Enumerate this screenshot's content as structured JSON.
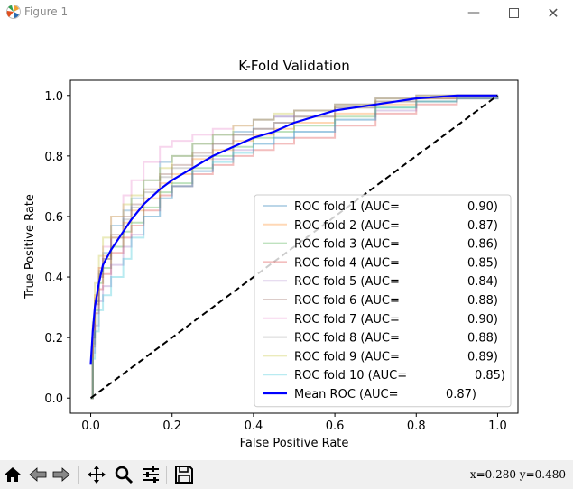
{
  "window": {
    "title": "Figure 1",
    "minimize_icon": "minimize-icon",
    "maximize_icon": "maximize-icon",
    "close_icon": "close-icon"
  },
  "toolbar": {
    "buttons": [
      "home-icon",
      "back-arrow-icon",
      "forward-arrow-icon",
      "pan-icon",
      "zoom-icon",
      "configure-subplots-icon",
      "save-icon"
    ],
    "coords": "x=0.280 y=0.480"
  },
  "chart_data": {
    "type": "line",
    "title": "K-Fold Validation",
    "xlabel": "False Positive Rate",
    "ylabel": "True Positive Rate",
    "xlim": [
      -0.05,
      1.05
    ],
    "ylim": [
      -0.05,
      1.05
    ],
    "xticks": [
      "0.0",
      "0.2",
      "0.4",
      "0.6",
      "0.8",
      "1.0"
    ],
    "yticks": [
      "0.0",
      "0.2",
      "0.4",
      "0.6",
      "0.8",
      "1.0"
    ],
    "grid": false,
    "legend_position": "lower right",
    "series": [
      {
        "name": "ROC fold  1 (AUC=",
        "auc": "0.90",
        "color": "#1f77b4",
        "x": [
          0,
          0.005,
          0.01,
          0.02,
          0.03,
          0.05,
          0.08,
          0.1,
          0.13,
          0.17,
          0.2,
          0.25,
          0.3,
          0.35,
          0.4,
          0.45,
          0.5,
          0.6,
          0.7,
          0.8,
          0.9,
          1.0
        ],
        "y": [
          0,
          0.2,
          0.32,
          0.42,
          0.48,
          0.57,
          0.62,
          0.66,
          0.72,
          0.78,
          0.8,
          0.84,
          0.87,
          0.88,
          0.92,
          0.93,
          0.95,
          0.97,
          0.99,
          1.0,
          1.0,
          1.0
        ]
      },
      {
        "name": "ROC fold  2 (AUC=",
        "auc": "0.87",
        "color": "#ff7f0e",
        "x": [
          0,
          0.005,
          0.01,
          0.02,
          0.03,
          0.05,
          0.08,
          0.1,
          0.13,
          0.17,
          0.2,
          0.25,
          0.3,
          0.35,
          0.4,
          0.45,
          0.5,
          0.6,
          0.7,
          0.8,
          0.9,
          1.0
        ],
        "y": [
          0,
          0.24,
          0.34,
          0.43,
          0.47,
          0.53,
          0.58,
          0.62,
          0.66,
          0.71,
          0.74,
          0.79,
          0.82,
          0.85,
          0.87,
          0.89,
          0.91,
          0.94,
          0.97,
          0.99,
          1.0,
          1.0
        ]
      },
      {
        "name": "ROC fold  3 (AUC=",
        "auc": "0.86",
        "color": "#2ca02c",
        "x": [
          0,
          0.005,
          0.01,
          0.02,
          0.03,
          0.05,
          0.08,
          0.1,
          0.13,
          0.17,
          0.2,
          0.25,
          0.3,
          0.35,
          0.4,
          0.45,
          0.5,
          0.6,
          0.7,
          0.8,
          0.9,
          1.0
        ],
        "y": [
          0,
          0.18,
          0.29,
          0.38,
          0.43,
          0.5,
          0.55,
          0.58,
          0.63,
          0.68,
          0.71,
          0.76,
          0.8,
          0.83,
          0.86,
          0.88,
          0.9,
          0.93,
          0.96,
          0.98,
          0.99,
          1.0
        ]
      },
      {
        "name": "ROC fold  4 (AUC=",
        "auc": "0.85",
        "color": "#d62728",
        "x": [
          0,
          0.005,
          0.01,
          0.02,
          0.03,
          0.05,
          0.08,
          0.1,
          0.13,
          0.17,
          0.2,
          0.25,
          0.3,
          0.35,
          0.4,
          0.45,
          0.5,
          0.6,
          0.7,
          0.8,
          0.9,
          1.0
        ],
        "y": [
          0,
          0.17,
          0.28,
          0.36,
          0.41,
          0.48,
          0.53,
          0.57,
          0.62,
          0.67,
          0.7,
          0.74,
          0.77,
          0.8,
          0.82,
          0.84,
          0.86,
          0.9,
          0.94,
          0.97,
          0.99,
          1.0
        ]
      },
      {
        "name": "ROC fold  5 (AUC=",
        "auc": "0.84",
        "color": "#9467bd",
        "x": [
          0,
          0.005,
          0.01,
          0.02,
          0.03,
          0.05,
          0.08,
          0.1,
          0.13,
          0.17,
          0.2,
          0.25,
          0.3,
          0.35,
          0.4,
          0.45,
          0.5,
          0.6,
          0.7,
          0.8,
          0.9,
          1.0
        ],
        "y": [
          0,
          0.15,
          0.24,
          0.32,
          0.37,
          0.44,
          0.5,
          0.54,
          0.6,
          0.66,
          0.7,
          0.75,
          0.79,
          0.82,
          0.84,
          0.86,
          0.88,
          0.92,
          0.95,
          0.98,
          0.99,
          1.0
        ]
      },
      {
        "name": "ROC fold  6 (AUC=",
        "auc": "0.88",
        "color": "#8c564b",
        "x": [
          0,
          0.005,
          0.01,
          0.02,
          0.03,
          0.05,
          0.08,
          0.1,
          0.13,
          0.17,
          0.2,
          0.25,
          0.3,
          0.35,
          0.4,
          0.45,
          0.5,
          0.6,
          0.7,
          0.8,
          0.9,
          1.0
        ],
        "y": [
          0,
          0.2,
          0.31,
          0.4,
          0.46,
          0.54,
          0.6,
          0.64,
          0.69,
          0.74,
          0.77,
          0.81,
          0.84,
          0.87,
          0.89,
          0.91,
          0.93,
          0.96,
          0.98,
          0.99,
          1.0,
          1.0
        ]
      },
      {
        "name": "ROC fold  7 (AUC=",
        "auc": "0.90",
        "color": "#e377c2",
        "x": [
          0,
          0.005,
          0.01,
          0.02,
          0.03,
          0.05,
          0.08,
          0.1,
          0.13,
          0.17,
          0.2,
          0.25,
          0.3,
          0.35,
          0.4,
          0.45,
          0.5,
          0.6,
          0.7,
          0.8,
          0.9,
          1.0
        ],
        "y": [
          0,
          0.22,
          0.33,
          0.43,
          0.5,
          0.6,
          0.67,
          0.72,
          0.78,
          0.83,
          0.85,
          0.87,
          0.89,
          0.9,
          0.92,
          0.93,
          0.95,
          0.97,
          0.99,
          1.0,
          1.0,
          1.0
        ]
      },
      {
        "name": "ROC fold  8 (AUC=",
        "auc": "0.88",
        "color": "#7f7f7f",
        "x": [
          0,
          0.005,
          0.01,
          0.02,
          0.03,
          0.05,
          0.08,
          0.1,
          0.13,
          0.17,
          0.2,
          0.25,
          0.3,
          0.35,
          0.4,
          0.45,
          0.5,
          0.6,
          0.7,
          0.8,
          0.9,
          1.0
        ],
        "y": [
          0,
          0.21,
          0.32,
          0.41,
          0.46,
          0.53,
          0.59,
          0.63,
          0.68,
          0.73,
          0.76,
          0.8,
          0.84,
          0.87,
          0.89,
          0.91,
          0.93,
          0.96,
          0.98,
          0.99,
          1.0,
          1.0
        ]
      },
      {
        "name": "ROC fold  9 (AUC=",
        "auc": "0.89",
        "color": "#bcbd22",
        "x": [
          0,
          0.005,
          0.01,
          0.02,
          0.03,
          0.05,
          0.08,
          0.1,
          0.13,
          0.17,
          0.2,
          0.25,
          0.3,
          0.35,
          0.4,
          0.45,
          0.5,
          0.6,
          0.7,
          0.8,
          0.9,
          1.0
        ],
        "y": [
          0,
          0.25,
          0.38,
          0.47,
          0.53,
          0.6,
          0.64,
          0.67,
          0.72,
          0.76,
          0.8,
          0.84,
          0.87,
          0.9,
          0.92,
          0.94,
          0.95,
          0.97,
          0.99,
          1.0,
          1.0,
          1.0
        ]
      },
      {
        "name": "ROC fold  10 (AUC=",
        "auc": "0.85",
        "color": "#17becf",
        "x": [
          0,
          0.005,
          0.01,
          0.02,
          0.03,
          0.05,
          0.08,
          0.1,
          0.13,
          0.17,
          0.2,
          0.25,
          0.3,
          0.35,
          0.4,
          0.45,
          0.5,
          0.6,
          0.7,
          0.8,
          0.9,
          1.0
        ],
        "y": [
          0,
          0.13,
          0.22,
          0.29,
          0.34,
          0.4,
          0.46,
          0.53,
          0.6,
          0.66,
          0.7,
          0.75,
          0.78,
          0.81,
          0.84,
          0.86,
          0.88,
          0.92,
          0.96,
          0.98,
          0.99,
          1.0
        ]
      },
      {
        "name": "Mean ROC (AUC=",
        "auc": "0.87",
        "color": "#0000ff",
        "x": [
          0,
          0.005,
          0.01,
          0.02,
          0.03,
          0.05,
          0.08,
          0.1,
          0.13,
          0.17,
          0.2,
          0.25,
          0.3,
          0.35,
          0.4,
          0.45,
          0.5,
          0.6,
          0.7,
          0.8,
          0.9,
          1.0
        ],
        "y": [
          0.11,
          0.22,
          0.3,
          0.38,
          0.44,
          0.49,
          0.55,
          0.59,
          0.64,
          0.69,
          0.72,
          0.76,
          0.8,
          0.83,
          0.86,
          0.88,
          0.91,
          0.95,
          0.97,
          0.99,
          1.0,
          1.0
        ]
      }
    ],
    "diagonal": {
      "x": [
        0,
        1
      ],
      "y": [
        0,
        1
      ],
      "style": "dashed",
      "color": "#000000"
    }
  }
}
